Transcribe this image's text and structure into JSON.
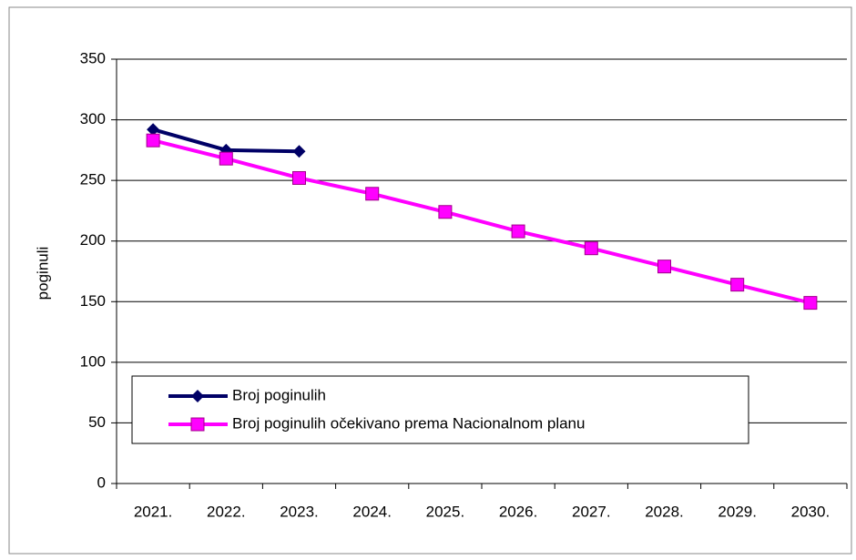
{
  "chart_data": {
    "type": "line",
    "y_label": "poginuli",
    "categories": [
      "2021.",
      "2022.",
      "2023.",
      "2024.",
      "2025.",
      "2026.",
      "2027.",
      "2028.",
      "2029.",
      "2030."
    ],
    "series": [
      {
        "name": "Broj poginulih",
        "color": "#000066",
        "marker": "diamond",
        "values": [
          292,
          275,
          274,
          null,
          null,
          null,
          null,
          null,
          null,
          null
        ]
      },
      {
        "name": "Broj poginulih očekivano prema Nacionalnom planu",
        "color": "#ff00ff",
        "marker": "square",
        "values": [
          283,
          268,
          252,
          239,
          224,
          208,
          194,
          179,
          164,
          149
        ]
      }
    ],
    "ylim": [
      0,
      350
    ],
    "yticks": [
      0,
      50,
      100,
      150,
      200,
      250,
      300,
      350
    ],
    "grid": true
  }
}
